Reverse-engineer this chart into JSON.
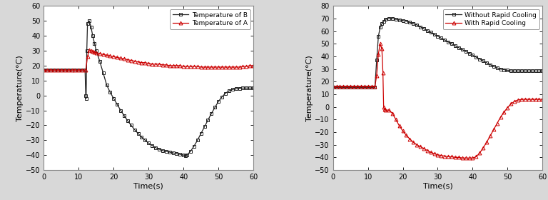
{
  "left": {
    "xlabel": "Time(s)",
    "ylabel": "Temperature(°C)",
    "xlim": [
      0,
      60
    ],
    "ylim": [
      -50,
      60
    ],
    "yticks": [
      -50,
      -40,
      -30,
      -20,
      -10,
      0,
      10,
      20,
      30,
      40,
      50,
      60
    ],
    "xticks": [
      0,
      10,
      20,
      30,
      40,
      50,
      60
    ],
    "legend": [
      "Temperature of B",
      "Temperature of A"
    ],
    "series_B_color": "#222222",
    "series_A_color": "#cc0000",
    "marker_B": "s",
    "marker_A": "^"
  },
  "right": {
    "xlabel": "Time(s)",
    "ylabel": "Temperature(°C)",
    "xlim": [
      0,
      60
    ],
    "ylim": [
      -50,
      80
    ],
    "yticks": [
      -50,
      -40,
      -30,
      -20,
      -10,
      0,
      10,
      20,
      30,
      40,
      50,
      60,
      70,
      80
    ],
    "xticks": [
      0,
      10,
      20,
      30,
      40,
      50,
      60
    ],
    "legend": [
      "Without Rapid Cooling",
      "With Rapid Cooling"
    ],
    "series_without_color": "#222222",
    "series_with_color": "#cc0000",
    "marker_without": "s",
    "marker_with": "^"
  },
  "fig_facecolor": "#d8d8d8",
  "ax_facecolor": "#ffffff"
}
